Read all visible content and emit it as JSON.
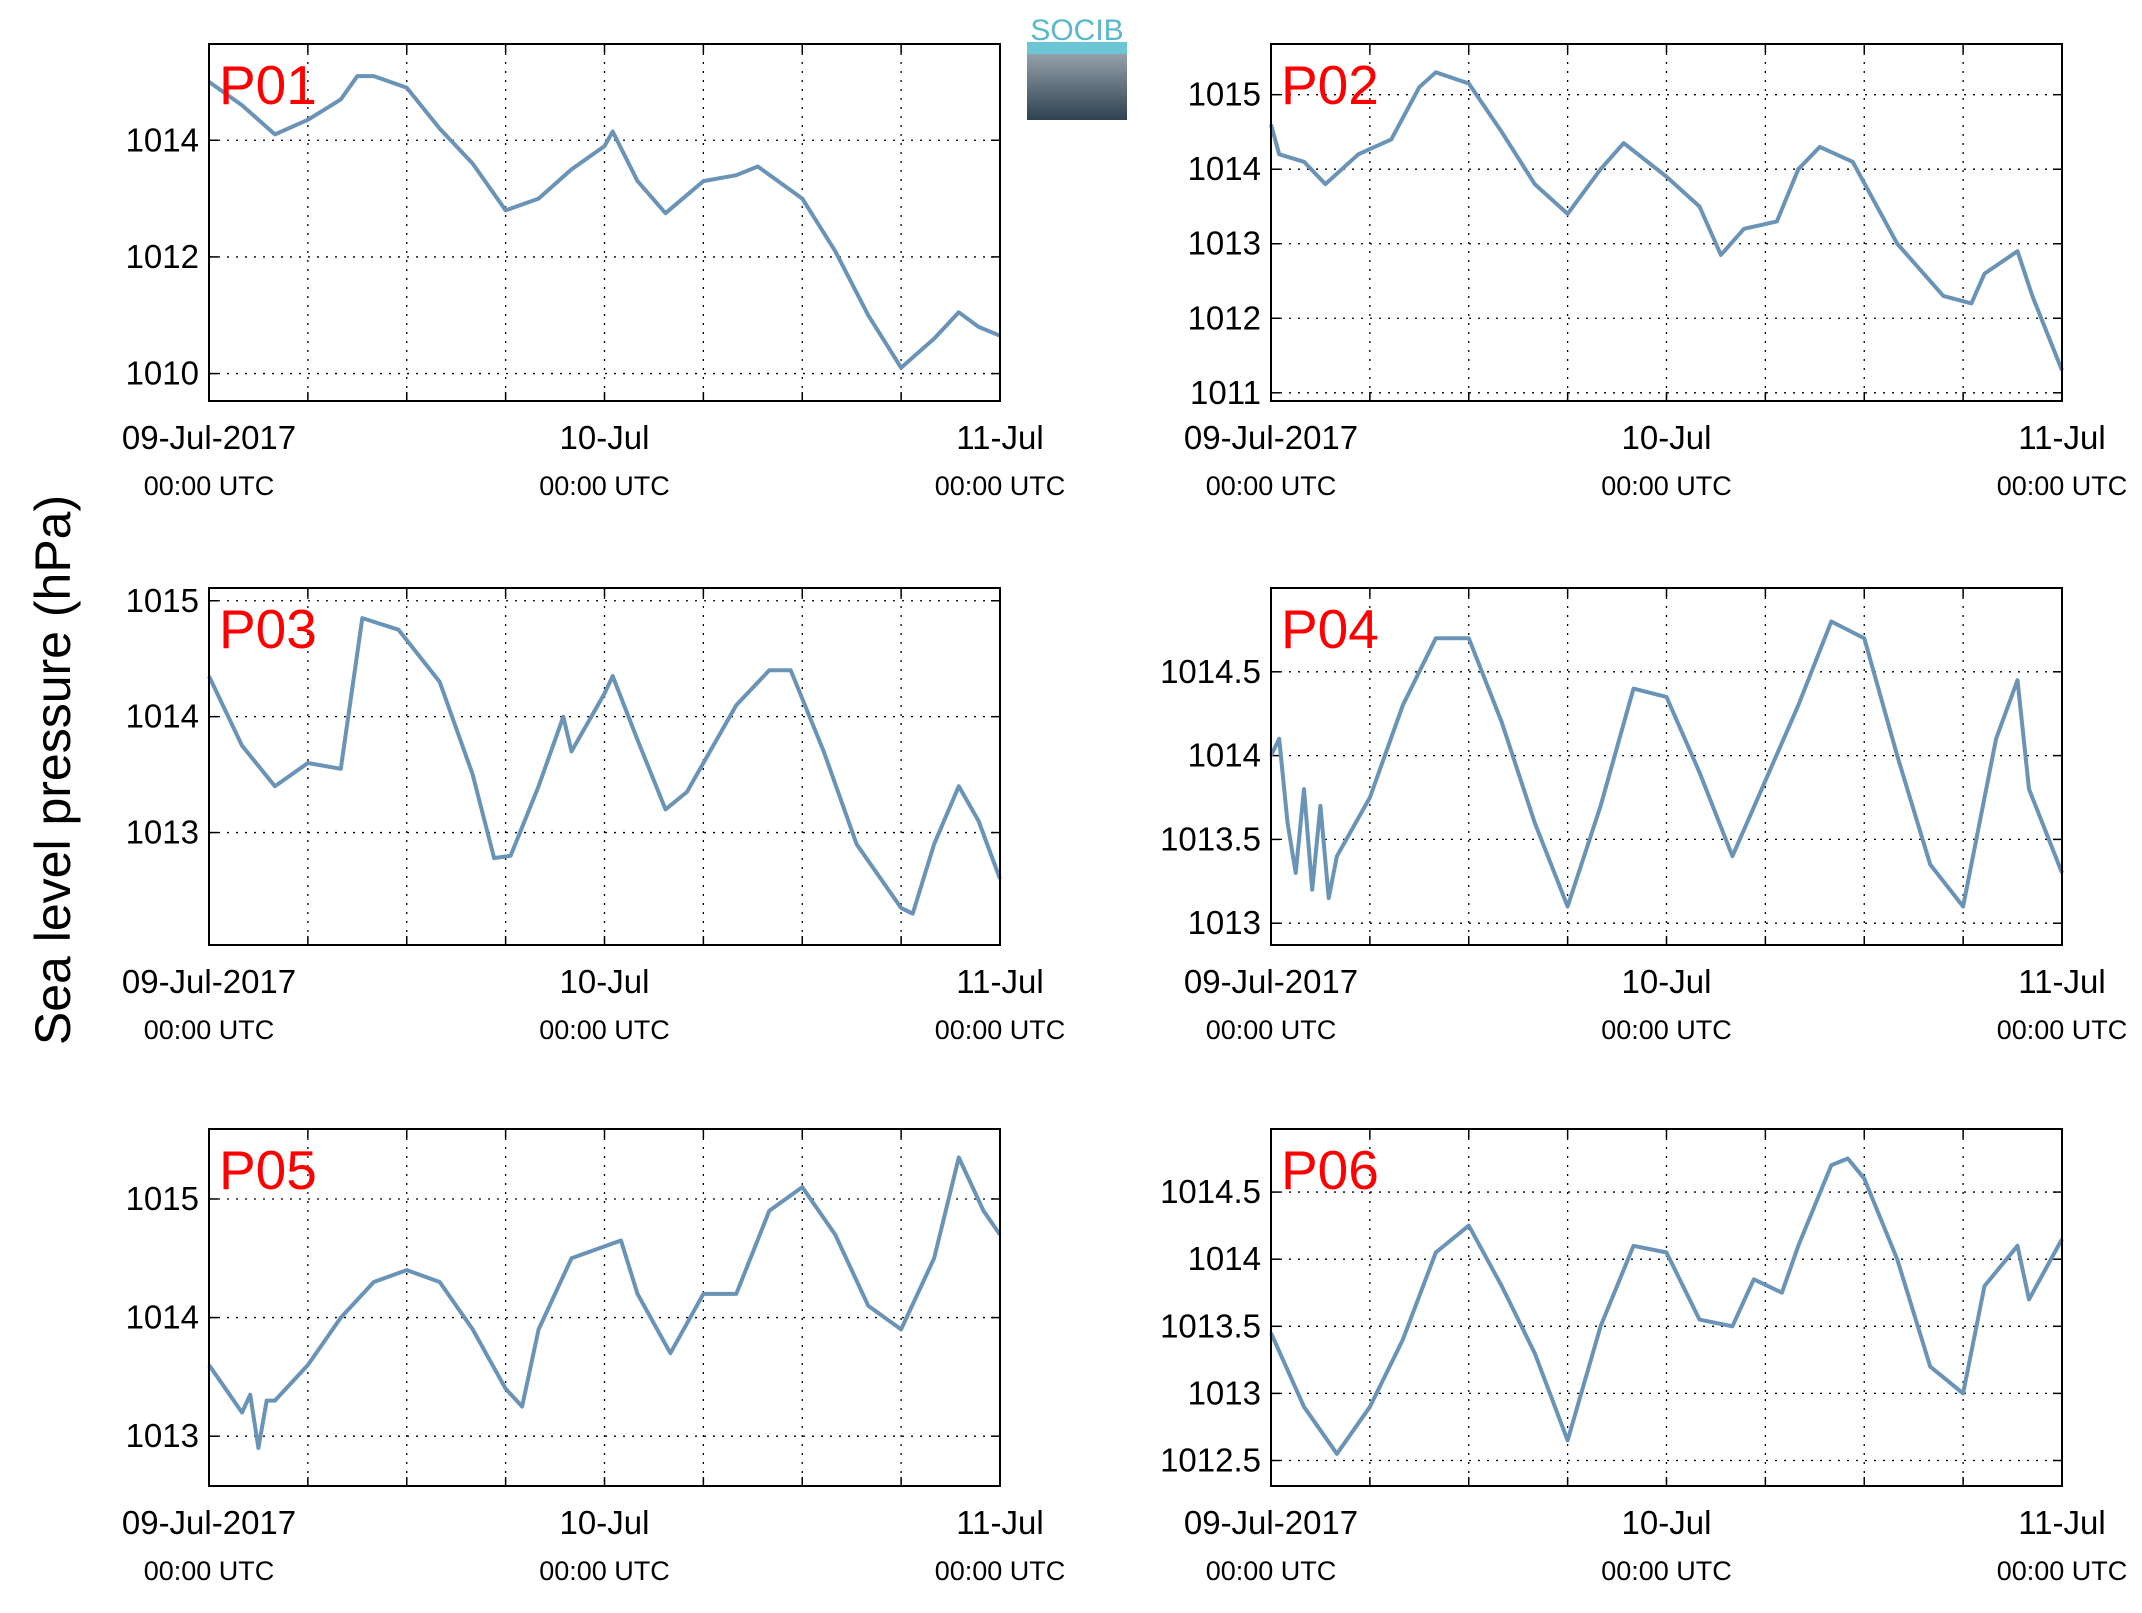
{
  "ylabel": "Sea level pressure (hPa)",
  "logo_text": "SOCIB",
  "chart_data": [
    {
      "type": "line",
      "title": "P01",
      "color": "#6a93b8",
      "grid": true,
      "x": [
        0,
        2,
        4,
        6,
        8,
        9,
        10,
        12,
        14,
        16,
        18,
        20,
        22,
        24,
        24.5,
        26,
        27.7,
        30,
        32,
        33.3,
        36,
        38,
        40,
        42,
        44,
        45.5,
        46.7,
        48
      ],
      "values": [
        1015.0,
        1014.6,
        1014.1,
        1014.35,
        1014.7,
        1015.1,
        1015.1,
        1014.9,
        1014.2,
        1013.6,
        1012.8,
        1013.0,
        1013.5,
        1013.9,
        1014.15,
        1013.3,
        1012.75,
        1013.3,
        1013.4,
        1013.55,
        1013.0,
        1012.1,
        1011.0,
        1010.1,
        1010.6,
        1011.05,
        1010.8,
        1010.65
      ],
      "xlim": [
        0,
        48
      ],
      "ylim": [
        1009.53,
        1015.65
      ],
      "yticks": [
        1010,
        1012,
        1014
      ],
      "xticks": [
        {
          "value": 0,
          "label": "09-Jul-2017",
          "sublabel": "00:00 UTC"
        },
        {
          "value": 24,
          "label": "10-Jul",
          "sublabel": "00:00 UTC"
        },
        {
          "value": 48,
          "label": "11-Jul",
          "sublabel": "00:00 UTC"
        }
      ],
      "xminorticks": [
        6,
        12,
        18,
        30,
        36,
        42
      ]
    },
    {
      "type": "line",
      "title": "P02",
      "color": "#6a93b8",
      "grid": true,
      "x": [
        0,
        0.5,
        2,
        3.3,
        5.3,
        7.3,
        9,
        10,
        12,
        14,
        16,
        18,
        20,
        21.4,
        24,
        26,
        27.3,
        28.7,
        30.7,
        32,
        33.3,
        35.3,
        38,
        40.8,
        42.5,
        43.3,
        45.3,
        46.2,
        48
      ],
      "values": [
        1014.6,
        1014.2,
        1014.1,
        1013.8,
        1014.2,
        1014.4,
        1015.1,
        1015.3,
        1015.15,
        1014.5,
        1013.8,
        1013.4,
        1014.0,
        1014.35,
        1013.9,
        1013.5,
        1012.85,
        1013.2,
        1013.3,
        1014.0,
        1014.3,
        1014.1,
        1013.0,
        1012.3,
        1012.2,
        1012.6,
        1012.9,
        1012.3,
        1011.3
      ],
      "xlim": [
        0,
        48
      ],
      "ylim": [
        1010.89,
        1015.68
      ],
      "yticks": [
        1011,
        1012,
        1013,
        1014,
        1015
      ],
      "xticks": [
        {
          "value": 0,
          "label": "09-Jul-2017",
          "sublabel": "00:00 UTC"
        },
        {
          "value": 24,
          "label": "10-Jul",
          "sublabel": "00:00 UTC"
        },
        {
          "value": 48,
          "label": "11-Jul",
          "sublabel": "00:00 UTC"
        }
      ],
      "xminorticks": [
        6,
        12,
        18,
        30,
        36,
        42
      ]
    },
    {
      "type": "line",
      "title": "P03",
      "color": "#6a93b8",
      "grid": true,
      "x": [
        0,
        2,
        4,
        6,
        8,
        9.3,
        11.5,
        14,
        16,
        17.3,
        18.3,
        20,
        21.5,
        22,
        24,
        24.5,
        26,
        27.7,
        29,
        32,
        34,
        35.3,
        37.3,
        39.3,
        42,
        42.7,
        44,
        45.5,
        46.7,
        48
      ],
      "values": [
        1014.35,
        1013.75,
        1013.4,
        1013.6,
        1013.55,
        1014.85,
        1014.75,
        1014.3,
        1013.5,
        1012.78,
        1012.8,
        1013.4,
        1014.0,
        1013.7,
        1014.2,
        1014.35,
        1013.8,
        1013.2,
        1013.35,
        1014.1,
        1014.4,
        1014.4,
        1013.7,
        1012.9,
        1012.35,
        1012.3,
        1012.9,
        1013.4,
        1013.1,
        1012.6
      ],
      "xlim": [
        0,
        48
      ],
      "ylim": [
        1012.03,
        1015.11
      ],
      "yticks": [
        1013,
        1014,
        1015
      ],
      "xticks": [
        {
          "value": 0,
          "label": "09-Jul-2017",
          "sublabel": "00:00 UTC"
        },
        {
          "value": 24,
          "label": "10-Jul",
          "sublabel": "00:00 UTC"
        },
        {
          "value": 48,
          "label": "11-Jul",
          "sublabel": "00:00 UTC"
        }
      ],
      "xminorticks": [
        6,
        12,
        18,
        30,
        36,
        42
      ]
    },
    {
      "type": "line",
      "title": "P04",
      "color": "#6a93b8",
      "grid": true,
      "x": [
        0,
        0.5,
        1,
        1.5,
        2,
        2.5,
        3,
        3.5,
        4,
        6,
        8,
        10,
        12,
        14,
        16,
        18,
        20,
        22,
        24,
        26,
        28,
        30,
        32,
        34,
        36,
        38,
        40,
        42,
        44,
        45.3,
        46,
        48
      ],
      "values": [
        1014.0,
        1014.1,
        1013.6,
        1013.3,
        1013.8,
        1013.2,
        1013.7,
        1013.15,
        1013.4,
        1013.75,
        1014.3,
        1014.7,
        1014.7,
        1014.2,
        1013.6,
        1013.1,
        1013.7,
        1014.4,
        1014.35,
        1013.9,
        1013.4,
        1013.85,
        1014.3,
        1014.8,
        1014.7,
        1014.0,
        1013.35,
        1013.1,
        1014.1,
        1014.45,
        1013.8,
        1013.3
      ],
      "xlim": [
        0,
        48
      ],
      "ylim": [
        1012.87,
        1015.0
      ],
      "yticks": [
        1013,
        1013.5,
        1014,
        1014.5
      ],
      "xticks": [
        {
          "value": 0,
          "label": "09-Jul-2017",
          "sublabel": "00:00 UTC"
        },
        {
          "value": 24,
          "label": "10-Jul",
          "sublabel": "00:00 UTC"
        },
        {
          "value": 48,
          "label": "11-Jul",
          "sublabel": "00:00 UTC"
        }
      ],
      "xminorticks": [
        6,
        12,
        18,
        30,
        36,
        42
      ]
    },
    {
      "type": "line",
      "title": "P05",
      "color": "#6a93b8",
      "grid": true,
      "x": [
        0,
        1,
        2,
        2.5,
        3,
        3.5,
        4,
        6,
        8,
        10,
        12,
        14,
        16,
        18,
        19,
        20,
        22,
        24,
        25,
        26,
        28,
        30,
        32,
        34,
        36,
        38,
        40,
        42,
        44,
        45.5,
        47,
        48
      ],
      "values": [
        1013.6,
        1013.4,
        1013.2,
        1013.35,
        1012.9,
        1013.3,
        1013.3,
        1013.6,
        1014.0,
        1014.3,
        1014.4,
        1014.3,
        1013.9,
        1013.4,
        1013.25,
        1013.9,
        1014.5,
        1014.6,
        1014.65,
        1014.2,
        1013.7,
        1014.2,
        1014.2,
        1014.9,
        1015.1,
        1014.7,
        1014.1,
        1013.9,
        1014.5,
        1015.35,
        1014.9,
        1014.7
      ],
      "xlim": [
        0,
        48
      ],
      "ylim": [
        1012.58,
        1015.59
      ],
      "yticks": [
        1013,
        1014,
        1015
      ],
      "xticks": [
        {
          "value": 0,
          "label": "09-Jul-2017",
          "sublabel": "00:00 UTC"
        },
        {
          "value": 24,
          "label": "10-Jul",
          "sublabel": "00:00 UTC"
        },
        {
          "value": 48,
          "label": "11-Jul",
          "sublabel": "00:00 UTC"
        }
      ],
      "xminorticks": [
        6,
        12,
        18,
        30,
        36,
        42
      ]
    },
    {
      "type": "line",
      "title": "P06",
      "color": "#6a93b8",
      "grid": true,
      "x": [
        0,
        2,
        4,
        6,
        8,
        10,
        12,
        14,
        16,
        18,
        20,
        22,
        24,
        26,
        28,
        29.3,
        31,
        32,
        34,
        35,
        36,
        38,
        40,
        42,
        43.3,
        45.3,
        46,
        48
      ],
      "values": [
        1013.45,
        1012.9,
        1012.55,
        1012.9,
        1013.4,
        1014.05,
        1014.25,
        1013.8,
        1013.3,
        1012.65,
        1013.5,
        1014.1,
        1014.05,
        1013.55,
        1013.5,
        1013.85,
        1013.75,
        1014.1,
        1014.7,
        1014.75,
        1014.6,
        1014.0,
        1013.2,
        1013.0,
        1013.8,
        1014.1,
        1013.7,
        1014.15
      ],
      "xlim": [
        0,
        48
      ],
      "ylim": [
        1012.31,
        1014.97
      ],
      "yticks": [
        1012.5,
        1013,
        1013.5,
        1014,
        1014.5
      ],
      "xticks": [
        {
          "value": 0,
          "label": "09-Jul-2017",
          "sublabel": "00:00 UTC"
        },
        {
          "value": 24,
          "label": "10-Jul",
          "sublabel": "00:00 UTC"
        },
        {
          "value": 48,
          "label": "11-Jul",
          "sublabel": "00:00 UTC"
        }
      ],
      "xminorticks": [
        6,
        12,
        18,
        30,
        36,
        42
      ]
    }
  ]
}
